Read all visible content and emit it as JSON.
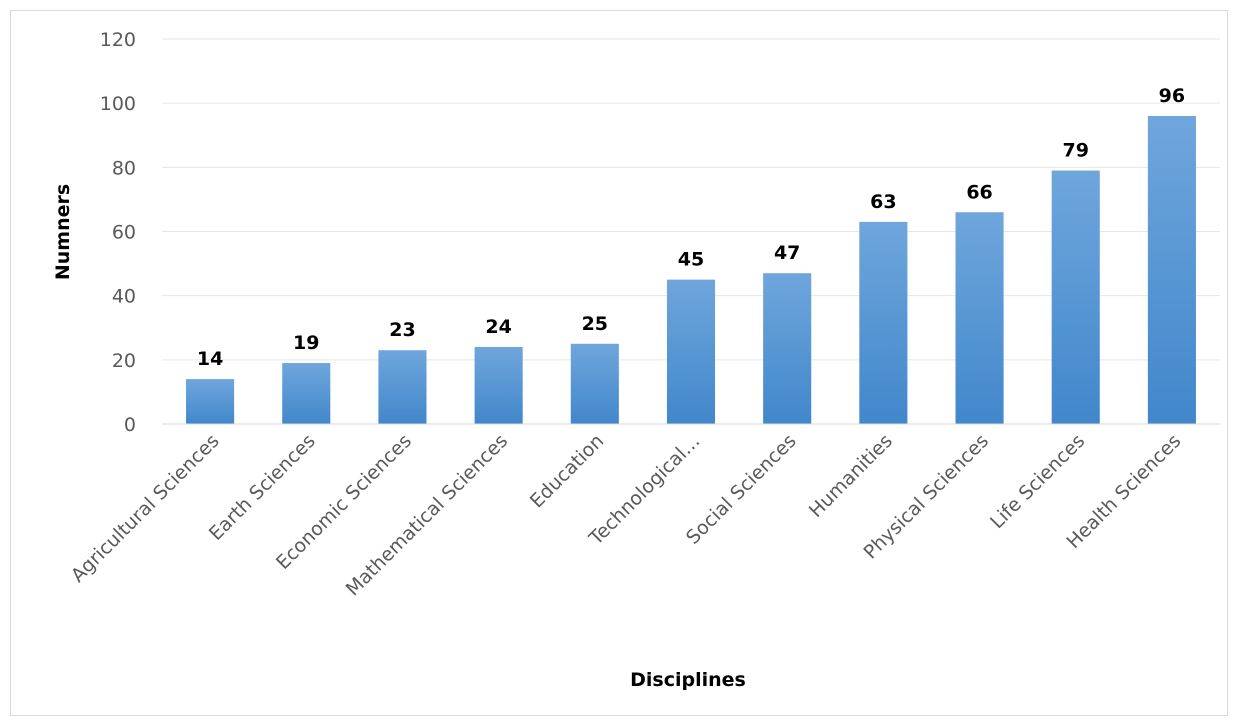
{
  "chart_data": {
    "type": "bar",
    "title": "",
    "xlabel": "Disciplines",
    "ylabel": "Numners",
    "categories": [
      "Agricultural Sciences",
      "Earth Sciences",
      "Economic Sciences",
      "Mathematical Sciences",
      "Education",
      "Technological…",
      "Social Sciences",
      "Humanities",
      "Physical Sciences",
      "Life Sciences",
      "Health Sciences"
    ],
    "values": [
      14,
      19,
      23,
      24,
      25,
      45,
      47,
      63,
      66,
      79,
      96
    ],
    "ylim": [
      0,
      120
    ],
    "yticks": [
      0,
      20,
      40,
      60,
      80,
      100,
      120
    ],
    "grid": true,
    "legend": "none",
    "data_labels": true,
    "colors": {
      "bar_top": "#6fa6dc",
      "bar_bottom": "#4187cb",
      "grid": "#e6e6e6",
      "axis": "#d9d9d9"
    }
  }
}
